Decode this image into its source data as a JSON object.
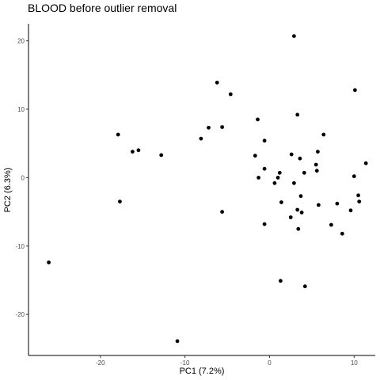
{
  "chart_data": {
    "type": "scatter",
    "title": "BLOOD before outlier removal",
    "xlabel": "PC1 (7.2%)",
    "ylabel": "PC2 (6.3%)",
    "xlim": [
      -28.5,
      12.5
    ],
    "ylim": [
      -26.0,
      22.5
    ],
    "xticks": [
      -20,
      -10,
      0,
      10
    ],
    "yticks": [
      -20,
      -10,
      0,
      10,
      20
    ],
    "xtick_labels": [
      "-20",
      "-10",
      "0",
      "10"
    ],
    "ytick_labels": [
      "-20",
      "-10",
      "0",
      "10",
      "20"
    ],
    "grid": false,
    "points": [
      {
        "x": 2.9,
        "y": 20.7
      },
      {
        "x": -6.2,
        "y": 13.9
      },
      {
        "x": -4.6,
        "y": 12.2
      },
      {
        "x": 10.1,
        "y": 12.8
      },
      {
        "x": 3.3,
        "y": 9.2
      },
      {
        "x": -1.4,
        "y": 8.5
      },
      {
        "x": -17.9,
        "y": 6.3
      },
      {
        "x": -16.2,
        "y": 3.8
      },
      {
        "x": -15.5,
        "y": 4.0
      },
      {
        "x": -12.8,
        "y": 3.3
      },
      {
        "x": -8.1,
        "y": 5.7
      },
      {
        "x": -7.2,
        "y": 7.3
      },
      {
        "x": -5.6,
        "y": 7.4
      },
      {
        "x": -0.6,
        "y": 5.4
      },
      {
        "x": 6.4,
        "y": 6.3
      },
      {
        "x": -1.7,
        "y": 3.2
      },
      {
        "x": 2.6,
        "y": 3.4
      },
      {
        "x": 3.6,
        "y": 2.8
      },
      {
        "x": 5.7,
        "y": 3.8
      },
      {
        "x": 11.4,
        "y": 2.1
      },
      {
        "x": 5.5,
        "y": 1.9
      },
      {
        "x": -0.6,
        "y": 1.3
      },
      {
        "x": 1.2,
        "y": 0.7
      },
      {
        "x": 4.1,
        "y": 0.7
      },
      {
        "x": 5.6,
        "y": 1.0
      },
      {
        "x": 10.0,
        "y": 0.2
      },
      {
        "x": -1.3,
        "y": 0.0
      },
      {
        "x": 1.0,
        "y": 0.0
      },
      {
        "x": 0.6,
        "y": -0.8
      },
      {
        "x": 2.9,
        "y": -0.8
      },
      {
        "x": 3.7,
        "y": -2.7
      },
      {
        "x": 10.5,
        "y": -2.6
      },
      {
        "x": 10.6,
        "y": -3.5
      },
      {
        "x": 1.4,
        "y": -3.6
      },
      {
        "x": 5.8,
        "y": -4.0
      },
      {
        "x": 8.0,
        "y": -3.8
      },
      {
        "x": 3.3,
        "y": -4.7
      },
      {
        "x": 9.6,
        "y": -4.8
      },
      {
        "x": 3.8,
        "y": -5.1
      },
      {
        "x": -5.6,
        "y": -5.0
      },
      {
        "x": 2.5,
        "y": -5.8
      },
      {
        "x": -0.6,
        "y": -6.8
      },
      {
        "x": 7.3,
        "y": -6.9
      },
      {
        "x": 3.4,
        "y": -7.5
      },
      {
        "x": 8.6,
        "y": -8.2
      },
      {
        "x": -26.1,
        "y": -12.4
      },
      {
        "x": 1.3,
        "y": -15.1
      },
      {
        "x": 4.2,
        "y": -15.9
      },
      {
        "x": -17.7,
        "y": -3.5
      },
      {
        "x": -10.9,
        "y": -23.9
      }
    ]
  }
}
